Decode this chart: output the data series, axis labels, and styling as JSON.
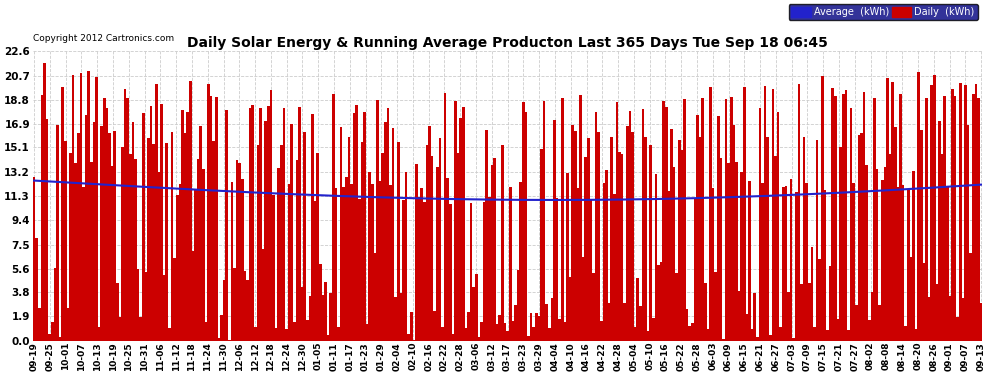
{
  "title": "Daily Solar Energy & Running Average Producton Last 365 Days Tue Sep 18 06:45",
  "title_fontsize": 10,
  "copyright": "Copyright 2012 Cartronics.com",
  "bar_color": "#cc0000",
  "line_color": "#2222cc",
  "bg_color": "#ffffff",
  "grid_color": "#cccccc",
  "yticks": [
    0.0,
    1.9,
    3.8,
    5.6,
    7.5,
    9.4,
    11.3,
    13.2,
    15.1,
    16.9,
    18.8,
    20.7,
    22.6
  ],
  "ylim": [
    0.0,
    22.6
  ],
  "legend_avg_label": "Average  (kWh)",
  "legend_daily_label": "Daily  (kWh)",
  "n_days": 365,
  "xtick_labels": [
    "09-19",
    "09-25",
    "10-01",
    "10-07",
    "10-13",
    "10-19",
    "10-25",
    "10-31",
    "11-06",
    "11-12",
    "11-18",
    "11-24",
    "11-30",
    "12-06",
    "12-12",
    "12-18",
    "12-24",
    "12-30",
    "01-05",
    "01-11",
    "01-17",
    "01-23",
    "01-29",
    "02-04",
    "02-10",
    "02-16",
    "02-22",
    "02-28",
    "03-06",
    "03-12",
    "03-17",
    "03-23",
    "03-29",
    "04-04",
    "04-10",
    "04-16",
    "04-22",
    "04-28",
    "05-04",
    "05-10",
    "05-16",
    "05-22",
    "05-28",
    "06-03",
    "06-09",
    "06-15",
    "06-21",
    "06-27",
    "07-03",
    "07-09",
    "07-15",
    "07-21",
    "07-27",
    "08-02",
    "08-08",
    "08-14",
    "08-20",
    "08-26",
    "09-01",
    "09-07",
    "09-13"
  ]
}
